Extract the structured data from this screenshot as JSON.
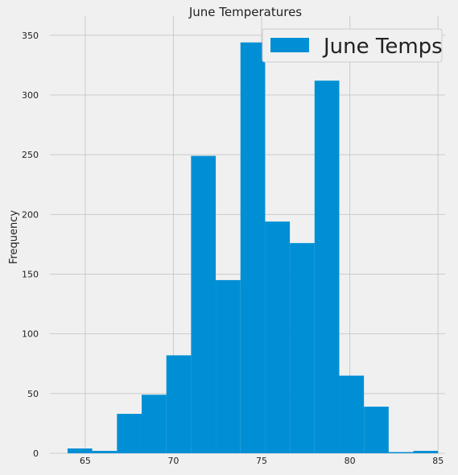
{
  "chart_data": {
    "type": "bar",
    "title": "June Temperatures",
    "xlabel": "",
    "ylabel": "Frequency",
    "xlim": [
      63,
      85.4
    ],
    "ylim": [
      0,
      362
    ],
    "x_ticks": [
      65,
      70,
      75,
      80,
      85
    ],
    "y_ticks": [
      0,
      50,
      100,
      150,
      200,
      250,
      300,
      350
    ],
    "grid": true,
    "legend": {
      "position": "top-right"
    },
    "series": [
      {
        "name": "June Temps",
        "color": "#008fd5",
        "bin_edges": [
          64.0,
          65.4,
          66.8,
          68.2,
          69.6,
          71.0,
          72.4,
          73.8,
          75.2,
          76.6,
          78.0,
          79.4,
          80.8,
          82.2,
          83.6,
          85.0
        ],
        "values": [
          4,
          2,
          33,
          49,
          82,
          249,
          145,
          344,
          194,
          176,
          312,
          65,
          39,
          1,
          2
        ]
      }
    ]
  }
}
